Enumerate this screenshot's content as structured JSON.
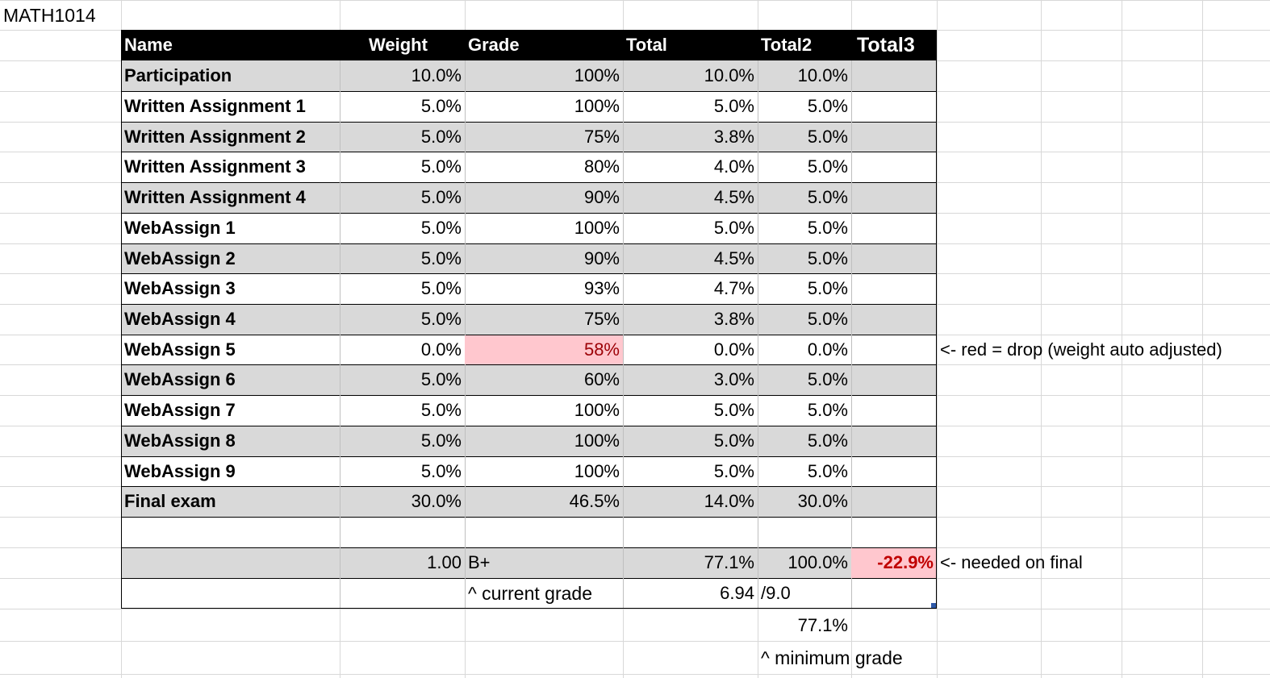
{
  "sheet_title": "MATH1014",
  "headers": [
    "Name",
    "Weight",
    "Grade",
    "Total",
    "Total2",
    "Total3"
  ],
  "rows": [
    {
      "name": "Participation",
      "weight": "10.0%",
      "grade": "100%",
      "total": "10.0%",
      "total2": "10.0%"
    },
    {
      "name": "Written Assignment 1",
      "weight": "5.0%",
      "grade": "100%",
      "total": "5.0%",
      "total2": "5.0%"
    },
    {
      "name": "Written Assignment 2",
      "weight": "5.0%",
      "grade": "75%",
      "total": "3.8%",
      "total2": "5.0%"
    },
    {
      "name": "Written Assignment 3",
      "weight": "5.0%",
      "grade": "80%",
      "total": "4.0%",
      "total2": "5.0%"
    },
    {
      "name": "Written Assignment 4",
      "weight": "5.0%",
      "grade": "90%",
      "total": "4.5%",
      "total2": "5.0%"
    },
    {
      "name": "WebAssign 1",
      "weight": "5.0%",
      "grade": "100%",
      "total": "5.0%",
      "total2": "5.0%"
    },
    {
      "name": "WebAssign 2",
      "weight": "5.0%",
      "grade": "90%",
      "total": "4.5%",
      "total2": "5.0%"
    },
    {
      "name": "WebAssign 3",
      "weight": "5.0%",
      "grade": "93%",
      "total": "4.7%",
      "total2": "5.0%"
    },
    {
      "name": "WebAssign 4",
      "weight": "5.0%",
      "grade": "75%",
      "total": "3.8%",
      "total2": "5.0%"
    },
    {
      "name": "WebAssign 5",
      "weight": "0.0%",
      "grade": "58%",
      "total": "0.0%",
      "total2": "0.0%"
    },
    {
      "name": "WebAssign 6",
      "weight": "5.0%",
      "grade": "60%",
      "total": "3.0%",
      "total2": "5.0%"
    },
    {
      "name": "WebAssign 7",
      "weight": "5.0%",
      "grade": "100%",
      "total": "5.0%",
      "total2": "5.0%"
    },
    {
      "name": "WebAssign 8",
      "weight": "5.0%",
      "grade": "100%",
      "total": "5.0%",
      "total2": "5.0%"
    },
    {
      "name": "WebAssign 9",
      "weight": "5.0%",
      "grade": "100%",
      "total": "5.0%",
      "total2": "5.0%"
    },
    {
      "name": "Final exam",
      "weight": "30.0%",
      "grade": "46.5%",
      "total": "14.0%",
      "total2": "30.0%"
    }
  ],
  "drop_note": "<- red = drop (weight auto adjusted)",
  "summary": {
    "weight_sum": "1.00",
    "letter": "B+",
    "total": "77.1%",
    "total2": "100.0%",
    "needed": "-22.9%",
    "needed_note": "<- needed on final"
  },
  "gpa": {
    "caption": "^ current grade",
    "value": "6.94",
    "scale": "/9.0"
  },
  "minimum": {
    "value": "77.1%",
    "caption": "^ minimum grade"
  },
  "colors": {
    "header_bg": "#000000",
    "band_gray": "#d9d9d9",
    "drop_fill": "#ffc7ce",
    "drop_text": "#9c0006",
    "needed_text": "#c00000"
  }
}
